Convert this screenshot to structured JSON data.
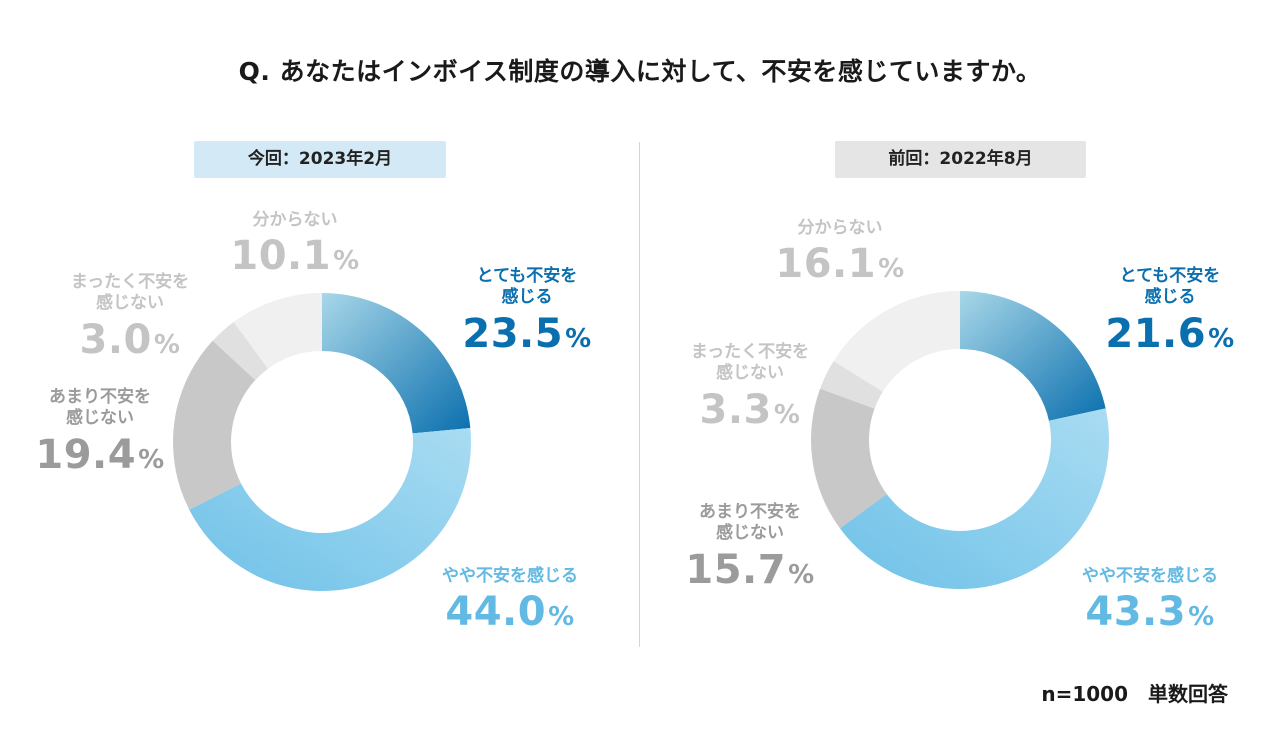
{
  "title": "Q. あなたはインボイス制度の導入に対して、不安を感じていますか。",
  "footnote": "n=1000　単数回答",
  "colors": {
    "very_anxious_start": "#a8d7e8",
    "very_anxious_end": "#0a6fae",
    "somewhat_anxious_start": "#6fc1e8",
    "somewhat_anxious_end": "#a9dcf2",
    "not_very_anxious": "#c8c8c8",
    "not_at_all_anxious": "#e0e0e0",
    "dont_know": "#f0f0f0",
    "label_dark_blue": "#0a6fae",
    "label_light_blue": "#62b9e4",
    "label_gray_dark": "#9b9b9b",
    "label_gray_light": "#c4c4c4"
  },
  "chart_data": [
    {
      "type": "pie",
      "period": "今回：2023年2月",
      "categories": [
        "とても不安を感じる",
        "やや不安を感じる",
        "あまり不安を感じない",
        "まったく不安を感じない",
        "分からない"
      ],
      "values": [
        23.5,
        44.0,
        19.4,
        3.0,
        10.1
      ],
      "labels": [
        {
          "name": [
            "とても不安を",
            "感じる"
          ],
          "pct": "23.5"
        },
        {
          "name": [
            "やや不安を感じる"
          ],
          "pct": "44.0"
        },
        {
          "name": [
            "あまり不安を",
            "感じない"
          ],
          "pct": "19.4"
        },
        {
          "name": [
            "まったく不安を",
            "感じない"
          ],
          "pct": "3.0"
        },
        {
          "name": [
            "分からない"
          ],
          "pct": "10.1"
        }
      ],
      "unit": "%"
    },
    {
      "type": "pie",
      "period": "前回：2022年8月",
      "categories": [
        "とても不安を感じる",
        "やや不安を感じる",
        "あまり不安を感じない",
        "まったく不安を感じない",
        "分からない"
      ],
      "values": [
        21.6,
        43.3,
        15.7,
        3.3,
        16.1
      ],
      "labels": [
        {
          "name": [
            "とても不安を",
            "感じる"
          ],
          "pct": "21.6"
        },
        {
          "name": [
            "やや不安を感じる"
          ],
          "pct": "43.3"
        },
        {
          "name": [
            "あまり不安を",
            "感じない"
          ],
          "pct": "15.7"
        },
        {
          "name": [
            "まったく不安を",
            "感じない"
          ],
          "pct": "3.3"
        },
        {
          "name": [
            "分からない"
          ],
          "pct": "16.1"
        }
      ],
      "unit": "%"
    }
  ]
}
